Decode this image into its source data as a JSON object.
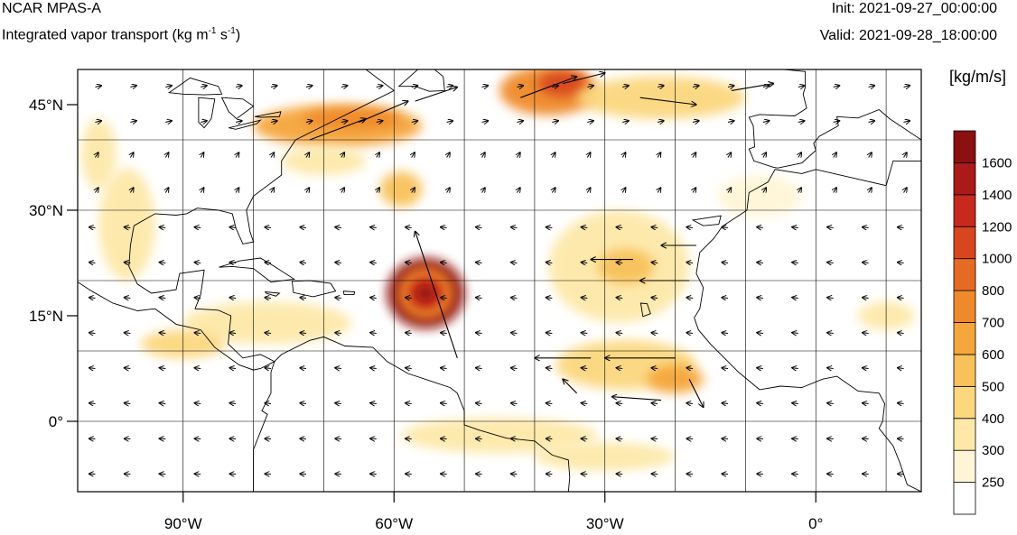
{
  "header": {
    "model": "NCAR MPAS-A",
    "variable_prefix": "Integrated vapor transport (kg m",
    "variable_exp1": "-1",
    "variable_mid": " s",
    "variable_exp2": "-1",
    "variable_suffix": ")",
    "init": "Init: 2021-09-27_00:00:00",
    "valid": "Valid: 2021-09-28_18:00:00"
  },
  "map": {
    "lon_range": [
      -105,
      15
    ],
    "lat_range": [
      -10,
      50
    ],
    "lon_ticks": [
      {
        "value": -90,
        "label": "90°W"
      },
      {
        "value": -60,
        "label": "60°W"
      },
      {
        "value": -30,
        "label": "30°W"
      },
      {
        "value": 0,
        "label": "0°"
      }
    ],
    "lat_ticks": [
      {
        "value": 45,
        "label": "45°N"
      },
      {
        "value": 30,
        "label": "30°N"
      },
      {
        "value": 15,
        "label": "15°N"
      },
      {
        "value": 0,
        "label": "0°"
      }
    ],
    "grid_lon": [
      -90,
      -80,
      -70,
      -60,
      -50,
      -40,
      -30,
      -20,
      -10,
      0,
      10
    ],
    "grid_lat": [
      40,
      30,
      20,
      10,
      0
    ]
  },
  "colorbar": {
    "units": "[kg/m/s]",
    "levels": [
      "250",
      "300",
      "400",
      "500",
      "600",
      "700",
      "800",
      "1000",
      "1200",
      "1400",
      "1600"
    ],
    "colors": [
      "#ffffff",
      "#fff5d6",
      "#fde8a8",
      "#fbd77e",
      "#f8c15a",
      "#f5a63c",
      "#ef8a2c",
      "#e56a24",
      "#d8461f",
      "#c72a1c",
      "#a91a18",
      "#8b1010"
    ]
  },
  "ivt_blobs": [
    {
      "name": "hurricane-core",
      "lon": -55.5,
      "lat": 18.2,
      "r_lon": 5.5,
      "r_lat": 5,
      "level": 11
    },
    {
      "name": "hurricane-mid",
      "lon": -55.5,
      "lat": 18.2,
      "r_lon": 4,
      "r_lat": 3.8,
      "level": 6
    },
    {
      "name": "hurricane-inner",
      "lon": -55.5,
      "lat": 18.2,
      "r_lon": 2.5,
      "r_lat": 2.3,
      "level": 9
    },
    {
      "name": "hurricane-eye",
      "lon": -55.5,
      "lat": 18.2,
      "r_lon": 1.2,
      "r_lat": 1.1,
      "level": 11
    },
    {
      "name": "atmospheric-river-west",
      "lon": -68,
      "lat": 42,
      "r_lon": 12,
      "r_lat": 3,
      "level": 5
    },
    {
      "name": "atmospheric-river-west-core",
      "lon": -66,
      "lat": 43,
      "r_lon": 7,
      "r_lat": 1.5,
      "level": 6
    },
    {
      "name": "atmospheric-river-east",
      "lon": -38,
      "lat": 47,
      "r_lon": 7,
      "r_lat": 3.5,
      "level": 6
    },
    {
      "name": "atmospheric-river-east-core",
      "lon": -36,
      "lat": 48,
      "r_lon": 3.5,
      "r_lat": 1.8,
      "level": 8
    },
    {
      "name": "northeast-band",
      "lon": -22,
      "lat": 46,
      "r_lon": 12,
      "r_lat": 3,
      "level": 3
    },
    {
      "name": "western-atlantic-plume",
      "lon": -59,
      "lat": 33,
      "r_lon": 3,
      "r_lat": 2.5,
      "level": 4
    },
    {
      "name": "gulf-band",
      "lon": -98,
      "lat": 28,
      "r_lon": 4,
      "r_lat": 8,
      "level": 2
    },
    {
      "name": "plains-band",
      "lon": -102,
      "lat": 38,
      "r_lon": 2.5,
      "r_lat": 5,
      "level": 2
    },
    {
      "name": "caribbean-band",
      "lon": -78,
      "lat": 14,
      "r_lon": 12,
      "r_lat": 3,
      "level": 2
    },
    {
      "name": "central-america-band",
      "lon": -90,
      "lat": 11,
      "r_lon": 6,
      "r_lat": 2,
      "level": 3
    },
    {
      "name": "african-easterly-north",
      "lon": -28,
      "lat": 22,
      "r_lon": 10,
      "r_lat": 8,
      "level": 2
    },
    {
      "name": "african-easterly-core",
      "lon": -27,
      "lat": 22,
      "r_lon": 4,
      "r_lat": 2.5,
      "level": 4
    },
    {
      "name": "eastern-wave",
      "lon": -27,
      "lat": 8,
      "r_lon": 10,
      "r_lat": 3.5,
      "level": 3
    },
    {
      "name": "eastern-wave-core",
      "lon": -20,
      "lat": 6,
      "r_lon": 4,
      "r_lat": 2,
      "level": 5
    },
    {
      "name": "equatorial-band",
      "lon": -45,
      "lat": -2,
      "r_lon": 14,
      "r_lat": 2.5,
      "level": 2
    },
    {
      "name": "equatorial-south",
      "lon": -30,
      "lat": -5,
      "r_lon": 10,
      "r_lat": 2,
      "level": 2
    },
    {
      "name": "africa-coast",
      "lon": 10,
      "lat": 15,
      "r_lon": 4,
      "r_lat": 2,
      "level": 2
    },
    {
      "name": "iberia-band",
      "lon": -8,
      "lat": 32,
      "r_lon": 6,
      "r_lat": 3,
      "level": 1
    },
    {
      "name": "gulf-stream-band",
      "lon": -70,
      "lat": 37,
      "r_lon": 6,
      "r_lat": 2,
      "level": 2
    }
  ],
  "land": [
    {
      "name": "north-america",
      "points": [
        [
          -105,
          50
        ],
        [
          -64,
          50
        ],
        [
          -60,
          47
        ],
        [
          -66,
          44
        ],
        [
          -70,
          42
        ],
        [
          -74,
          40
        ],
        [
          -76,
          37
        ],
        [
          -76,
          35
        ],
        [
          -80,
          32
        ],
        [
          -81,
          30
        ],
        [
          -80.5,
          27
        ],
        [
          -80,
          25.5
        ],
        [
          -81.5,
          25.2
        ],
        [
          -82.5,
          27.5
        ],
        [
          -83,
          29.5
        ],
        [
          -85,
          30
        ],
        [
          -88,
          30.3
        ],
        [
          -89.5,
          29.5
        ],
        [
          -91,
          29.3
        ],
        [
          -94,
          29.5
        ],
        [
          -97,
          27.8
        ],
        [
          -97.5,
          25
        ],
        [
          -97.7,
          22
        ],
        [
          -96.5,
          19.5
        ],
        [
          -94.5,
          18.2
        ],
        [
          -91,
          18.7
        ],
        [
          -90.5,
          21
        ],
        [
          -87,
          21.5
        ],
        [
          -87.5,
          18
        ],
        [
          -88.3,
          16
        ],
        [
          -85,
          15.8
        ],
        [
          -83.2,
          15
        ],
        [
          -83.6,
          11
        ],
        [
          -81.5,
          9
        ],
        [
          -79,
          9.5
        ],
        [
          -77,
          8.5
        ],
        [
          -79,
          7.5
        ],
        [
          -80,
          7.3
        ],
        [
          -82,
          8
        ],
        [
          -85.5,
          10.5
        ],
        [
          -87.5,
          13
        ],
        [
          -91,
          13.8
        ],
        [
          -94,
          16
        ],
        [
          -96.5,
          15.7
        ],
        [
          -100,
          16.8
        ],
        [
          -103,
          18.5
        ],
        [
          -105,
          19.8
        ]
      ]
    },
    {
      "name": "south-america",
      "points": [
        [
          -77,
          8.5
        ],
        [
          -76,
          9.5
        ],
        [
          -72,
          11.5
        ],
        [
          -70,
          12
        ],
        [
          -67,
          10.7
        ],
        [
          -63,
          10.5
        ],
        [
          -61,
          8.5
        ],
        [
          -58,
          6.8
        ],
        [
          -55,
          5.8
        ],
        [
          -52,
          4.8
        ],
        [
          -51,
          4
        ],
        [
          -50,
          1.5
        ],
        [
          -50,
          -0.5
        ],
        [
          -48,
          -1.2
        ],
        [
          -44,
          -2.4
        ],
        [
          -40,
          -2.8
        ],
        [
          -37.5,
          -4.8
        ],
        [
          -35.2,
          -5.5
        ],
        [
          -35,
          -8
        ],
        [
          -35.2,
          -10
        ],
        [
          -80,
          -10
        ],
        [
          -80,
          -4
        ],
        [
          -78,
          1
        ],
        [
          -78.8,
          1.5
        ],
        [
          -77.5,
          4
        ],
        [
          -77.5,
          7
        ]
      ]
    },
    {
      "name": "africa",
      "points": [
        [
          15,
          37
        ],
        [
          11,
          37
        ],
        [
          10,
          33.5
        ],
        [
          0,
          35.8
        ],
        [
          -2,
          35.2
        ],
        [
          -5.8,
          35.8
        ],
        [
          -6.8,
          34
        ],
        [
          -9.5,
          32.5
        ],
        [
          -9.8,
          30
        ],
        [
          -13.3,
          27.7
        ],
        [
          -14.5,
          26
        ],
        [
          -16.5,
          24
        ],
        [
          -17,
          21
        ],
        [
          -16,
          19
        ],
        [
          -16.5,
          16
        ],
        [
          -17.3,
          14.7
        ],
        [
          -16.7,
          13
        ],
        [
          -15,
          11
        ],
        [
          -13.5,
          9.5
        ],
        [
          -11,
          7
        ],
        [
          -8,
          4.5
        ],
        [
          -5,
          5
        ],
        [
          -2,
          4.8
        ],
        [
          1,
          6
        ],
        [
          3,
          6.4
        ],
        [
          6,
          4.3
        ],
        [
          9,
          4
        ],
        [
          9.8,
          2.5
        ],
        [
          9.5,
          0
        ],
        [
          9,
          -1
        ],
        [
          11,
          -3.5
        ],
        [
          12,
          -6
        ],
        [
          13,
          -9
        ],
        [
          15,
          -10
        ]
      ]
    },
    {
      "name": "europe",
      "points": [
        [
          -9.5,
          43.2
        ],
        [
          -8.9,
          42
        ],
        [
          -8.7,
          39
        ],
        [
          -9.5,
          38.7
        ],
        [
          -8.8,
          37
        ],
        [
          -6,
          36.1
        ],
        [
          -5.4,
          36
        ],
        [
          -2,
          36.7
        ],
        [
          0,
          38.5
        ],
        [
          -0.3,
          39.5
        ],
        [
          0.5,
          40.5
        ],
        [
          3.2,
          42
        ],
        [
          3,
          43.3
        ],
        [
          6,
          43.1
        ],
        [
          9,
          44.3
        ],
        [
          10.5,
          43
        ],
        [
          12,
          42
        ],
        [
          15,
          40
        ],
        [
          15,
          50
        ],
        [
          -4.5,
          50
        ],
        [
          -1.5,
          49.7
        ],
        [
          -1.5,
          47.5
        ],
        [
          -1.8,
          46.5
        ],
        [
          -1.3,
          44.5
        ],
        [
          -3,
          43.4
        ],
        [
          -8,
          43.6
        ]
      ]
    },
    {
      "name": "cuba",
      "points": [
        [
          -84.9,
          21.9
        ],
        [
          -82,
          22.8
        ],
        [
          -79,
          23.2
        ],
        [
          -77,
          22
        ],
        [
          -74.2,
          20.2
        ],
        [
          -77.5,
          19.8
        ],
        [
          -80,
          21.7
        ],
        [
          -83,
          22
        ]
      ]
    },
    {
      "name": "hispaniola",
      "points": [
        [
          -74.5,
          19.9
        ],
        [
          -72,
          20
        ],
        [
          -69,
          19.6
        ],
        [
          -68.3,
          18.5
        ],
        [
          -71.5,
          17.7
        ],
        [
          -74.3,
          18.3
        ]
      ]
    },
    {
      "name": "jamaica",
      "points": [
        [
          -78.3,
          18.4
        ],
        [
          -76.3,
          18.2
        ],
        [
          -76.8,
          17.8
        ],
        [
          -78.2,
          18.2
        ]
      ]
    },
    {
      "name": "puerto-rico",
      "points": [
        [
          -67.2,
          18.5
        ],
        [
          -65.6,
          18.4
        ],
        [
          -65.7,
          18
        ],
        [
          -67.1,
          18
        ]
      ]
    },
    {
      "name": "newfoundland",
      "points": [
        [
          -59.3,
          47.6
        ],
        [
          -55.5,
          51
        ],
        [
          -53,
          49
        ],
        [
          -52.8,
          47
        ],
        [
          -55,
          46.9
        ],
        [
          -57,
          47.6
        ]
      ]
    },
    {
      "name": "cape-verde",
      "points": [
        [
          -24.9,
          16.8
        ],
        [
          -24,
          16.7
        ],
        [
          -23.5,
          15.3
        ],
        [
          -24.6,
          14.9
        ]
      ]
    },
    {
      "name": "canary",
      "points": [
        [
          -17.5,
          28.6
        ],
        [
          -13.5,
          29.2
        ],
        [
          -13.8,
          28
        ],
        [
          -16,
          27.8
        ]
      ]
    }
  ],
  "lakes": [
    {
      "name": "lake-superior",
      "points": [
        [
          -92,
          46.7
        ],
        [
          -89,
          48.8
        ],
        [
          -85,
          47.6
        ],
        [
          -84.5,
          46.5
        ],
        [
          -87,
          46.4
        ],
        [
          -90,
          46.5
        ]
      ]
    },
    {
      "name": "lake-michigan",
      "points": [
        [
          -87.8,
          46
        ],
        [
          -85.5,
          45.8
        ],
        [
          -86,
          43
        ],
        [
          -87,
          41.7
        ],
        [
          -87.8,
          42.5
        ]
      ]
    },
    {
      "name": "lake-huron",
      "points": [
        [
          -84.5,
          46
        ],
        [
          -81.5,
          45.8
        ],
        [
          -80,
          44.8
        ],
        [
          -82.4,
          43
        ],
        [
          -83.5,
          44
        ]
      ]
    },
    {
      "name": "lake-erie",
      "points": [
        [
          -83.5,
          41.7
        ],
        [
          -79,
          42.8
        ],
        [
          -79.5,
          42.3
        ],
        [
          -82.5,
          41.5
        ]
      ]
    },
    {
      "name": "lake-ontario",
      "points": [
        [
          -79.8,
          43.3
        ],
        [
          -76.1,
          44
        ],
        [
          -76.3,
          43.3
        ],
        [
          -79,
          43.2
        ]
      ]
    }
  ],
  "arrows": {
    "grid_dlon": 5,
    "grid_dlat": 5,
    "long_arrows": [
      {
        "lon": -51,
        "lat": 9,
        "dlon": -6,
        "dlat": 18
      },
      {
        "lon": -72,
        "lat": 40,
        "dlon": 8,
        "dlat": 3
      },
      {
        "lon": -65,
        "lat": 42.5,
        "dlon": 7,
        "dlat": 3
      },
      {
        "lon": -57,
        "lat": 45.5,
        "dlon": 6,
        "dlat": 2
      },
      {
        "lon": -42,
        "lat": 46,
        "dlon": 8,
        "dlat": 3
      },
      {
        "lon": -36,
        "lat": 48,
        "dlon": 6,
        "dlat": 1.5
      },
      {
        "lon": -25,
        "lat": 46,
        "dlon": 8,
        "dlat": -1
      },
      {
        "lon": -12,
        "lat": 47,
        "dlon": 6,
        "dlat": 1
      },
      {
        "lon": -20,
        "lat": 9,
        "dlon": -10,
        "dlat": 0
      },
      {
        "lon": -32,
        "lat": 9,
        "dlon": -8,
        "dlat": 0
      },
      {
        "lon": -22,
        "lat": 3,
        "dlon": -7,
        "dlat": 0.5
      },
      {
        "lon": -34,
        "lat": 4,
        "dlon": -2,
        "dlat": 2
      },
      {
        "lon": -18,
        "lat": 6,
        "dlon": 2,
        "dlat": -4
      },
      {
        "lon": -26,
        "lat": 23,
        "dlon": -6,
        "dlat": 0
      },
      {
        "lon": -18,
        "lat": 20,
        "dlon": -7,
        "dlat": 0
      },
      {
        "lon": -17,
        "lat": 25,
        "dlon": -5,
        "dlat": 0
      }
    ]
  }
}
